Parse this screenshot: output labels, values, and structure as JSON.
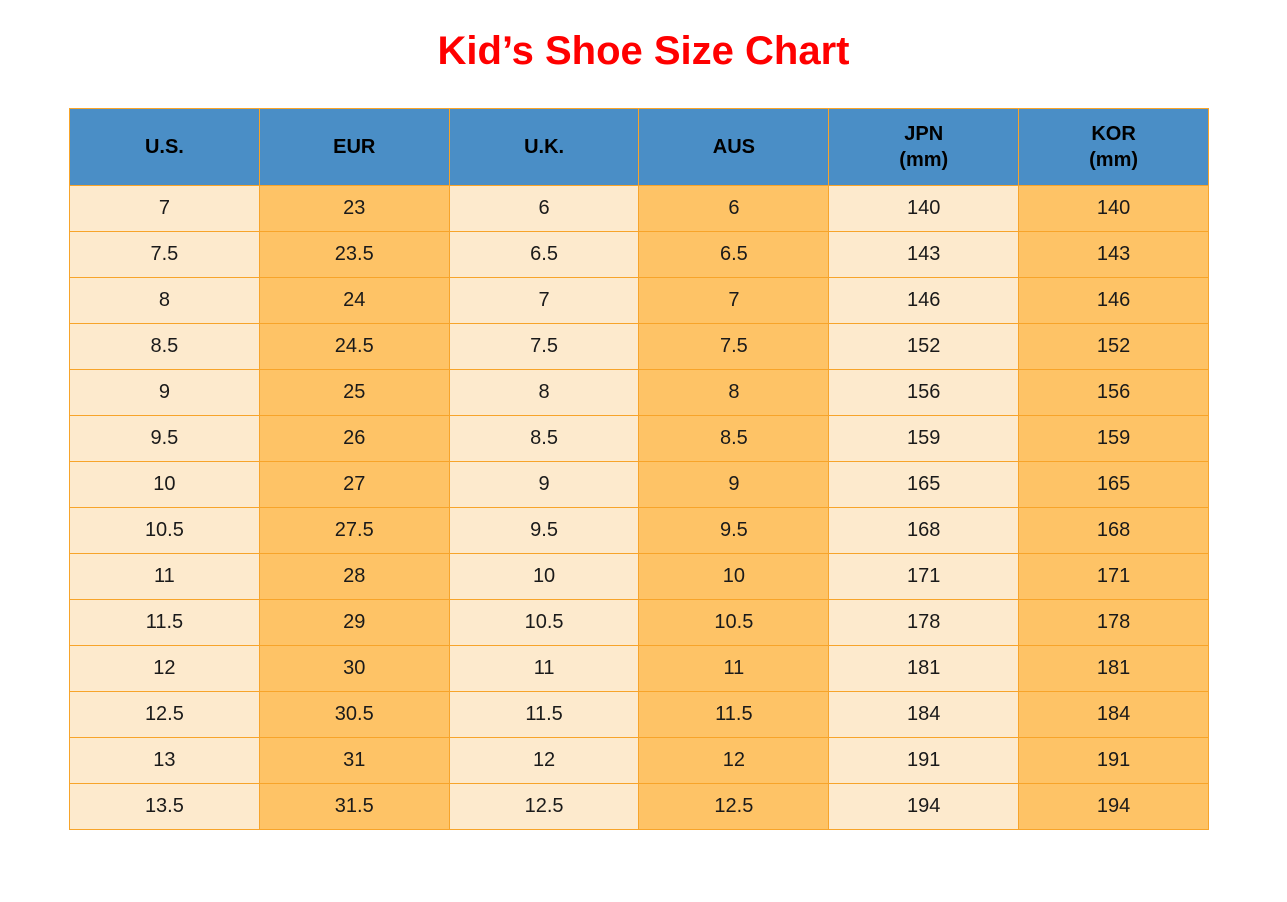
{
  "page": {
    "title": "Kid’s Shoe Size Chart"
  },
  "colors": {
    "title_red": "#FF0000",
    "header_blue": "#4A8EC6",
    "light_cell": "#FDEACD",
    "orange_cell": "#FEC366",
    "grid_border": "#F7A42A",
    "cell_text": "#1A1A1A",
    "header_text": "#000000"
  },
  "chart_data": {
    "type": "table",
    "title": "Kid’s Shoe Size Chart",
    "grid": true,
    "header_fill": "blue",
    "column_fill_pattern": [
      "light",
      "orange",
      "light",
      "orange",
      "light",
      "orange"
    ],
    "columns": [
      {
        "label": "U.S.",
        "sublabel": ""
      },
      {
        "label": "EUR",
        "sublabel": ""
      },
      {
        "label": "U.K.",
        "sublabel": ""
      },
      {
        "label": "AUS",
        "sublabel": ""
      },
      {
        "label": "JPN",
        "sublabel": "(mm)"
      },
      {
        "label": "KOR",
        "sublabel": "(mm)"
      }
    ],
    "rows": [
      [
        "7",
        "23",
        "6",
        "6",
        "140",
        "140"
      ],
      [
        "7.5",
        "23.5",
        "6.5",
        "6.5",
        "143",
        "143"
      ],
      [
        "8",
        "24",
        "7",
        "7",
        "146",
        "146"
      ],
      [
        "8.5",
        "24.5",
        "7.5",
        "7.5",
        "152",
        "152"
      ],
      [
        "9",
        "25",
        "8",
        "8",
        "156",
        "156"
      ],
      [
        "9.5",
        "26",
        "8.5",
        "8.5",
        "159",
        "159"
      ],
      [
        "10",
        "27",
        "9",
        "9",
        "165",
        "165"
      ],
      [
        "10.5",
        "27.5",
        "9.5",
        "9.5",
        "168",
        "168"
      ],
      [
        "11",
        "28",
        "10",
        "10",
        "171",
        "171"
      ],
      [
        "11.5",
        "29",
        "10.5",
        "10.5",
        "178",
        "178"
      ],
      [
        "12",
        "30",
        "11",
        "11",
        "181",
        "181"
      ],
      [
        "12.5",
        "30.5",
        "11.5",
        "11.5",
        "184",
        "184"
      ],
      [
        "13",
        "31",
        "12",
        "12",
        "191",
        "191"
      ],
      [
        "13.5",
        "31.5",
        "12.5",
        "12.5",
        "194",
        "194"
      ]
    ]
  }
}
